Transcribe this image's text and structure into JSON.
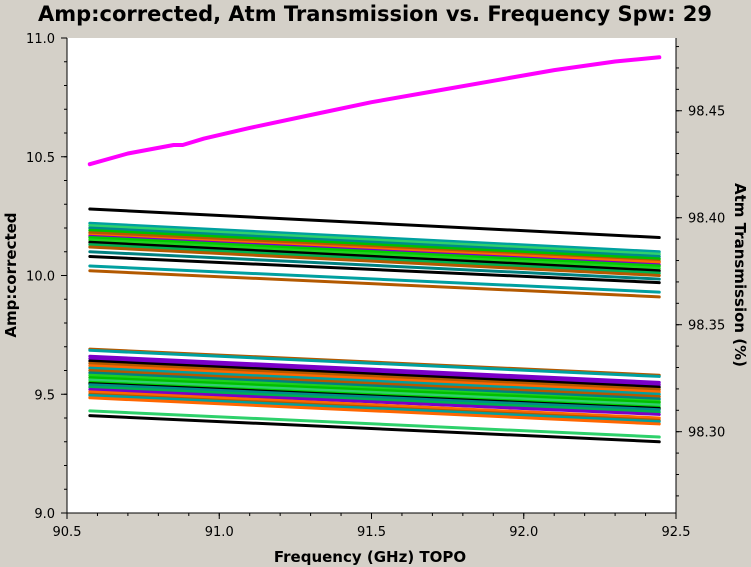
{
  "chart_data": {
    "type": "line",
    "title": "Amp:corrected, Atm Transmission vs. Frequency Spw: 29",
    "xlabel": "Frequency (GHz) TOPO",
    "ylabel": "Amp:corrected",
    "y2label": "Atm Transmission (%)",
    "xlim": [
      90.5,
      92.5
    ],
    "ylim": [
      9.0,
      11.0
    ],
    "y2lim": [
      98.262,
      98.484
    ],
    "x_ticks": [
      "90.5",
      "91.0",
      "91.5",
      "92.0",
      "92.5"
    ],
    "y_ticks": [
      "9.0",
      "9.5",
      "10.0",
      "10.5",
      "11.0"
    ],
    "y2_ticks": [
      "98.30",
      "98.35",
      "98.40",
      "98.45"
    ],
    "grid": false,
    "x_range": [
      90.575,
      92.445
    ],
    "atm_transmission": {
      "name": "Atm Transmission",
      "color": "#ff00ff",
      "x": [
        90.575,
        90.7,
        90.85,
        90.88,
        90.95,
        91.1,
        91.3,
        91.5,
        91.7,
        91.9,
        92.1,
        92.3,
        92.445
      ],
      "y": [
        98.425,
        98.43,
        98.434,
        98.434,
        98.437,
        98.442,
        98.448,
        98.454,
        98.459,
        98.464,
        98.469,
        98.473,
        98.475
      ]
    },
    "series": [
      {
        "color": "#000000",
        "y": [
          10.28,
          10.16
        ]
      },
      {
        "color": "#00a0a0",
        "y": [
          10.22,
          10.1
        ]
      },
      {
        "color": "#2ed16b",
        "y": [
          10.21,
          10.09
        ]
      },
      {
        "color": "#008b8b",
        "y": [
          10.2,
          10.08
        ]
      },
      {
        "color": "#00c000",
        "y": [
          10.19,
          10.07
        ]
      },
      {
        "color": "#b35900",
        "y": [
          10.18,
          10.06
        ]
      },
      {
        "color": "#ff6600",
        "y": [
          10.17,
          10.055
        ]
      },
      {
        "color": "#7a00c8",
        "y": [
          10.165,
          10.045
        ]
      },
      {
        "color": "#00cc00",
        "y": [
          10.16,
          10.04
        ]
      },
      {
        "color": "#20d020",
        "y": [
          10.15,
          10.03
        ]
      },
      {
        "color": "#000000",
        "y": [
          10.14,
          10.02
        ]
      },
      {
        "color": "#00b050",
        "y": [
          10.13,
          10.01
        ]
      },
      {
        "color": "#b35900",
        "y": [
          10.12,
          10.0
        ]
      },
      {
        "color": "#008080",
        "y": [
          10.1,
          9.985
        ]
      },
      {
        "color": "#000000",
        "y": [
          10.08,
          9.97
        ]
      },
      {
        "color": "#00a0a0",
        "y": [
          10.04,
          9.93
        ]
      },
      {
        "color": "#b35900",
        "y": [
          10.02,
          9.91
        ]
      },
      {
        "color": "#b35900",
        "y": [
          9.69,
          9.58
        ]
      },
      {
        "color": "#00a0a0",
        "y": [
          9.685,
          9.575
        ]
      },
      {
        "color": "#7a00c8",
        "y": [
          9.66,
          9.55
        ]
      },
      {
        "color": "#7a00c8",
        "y": [
          9.65,
          9.54
        ]
      },
      {
        "color": "#000000",
        "y": [
          9.64,
          9.53
        ]
      },
      {
        "color": "#b35900",
        "y": [
          9.63,
          9.52
        ]
      },
      {
        "color": "#ff6600",
        "y": [
          9.62,
          9.51
        ]
      },
      {
        "color": "#00a0a0",
        "y": [
          9.61,
          9.5
        ]
      },
      {
        "color": "#b35900",
        "y": [
          9.6,
          9.49
        ]
      },
      {
        "color": "#008080",
        "y": [
          9.59,
          9.48
        ]
      },
      {
        "color": "#20d020",
        "y": [
          9.58,
          9.47
        ]
      },
      {
        "color": "#00c000",
        "y": [
          9.57,
          9.465
        ]
      },
      {
        "color": "#2ed16b",
        "y": [
          9.56,
          9.455
        ]
      },
      {
        "color": "#00cc00",
        "y": [
          9.55,
          9.445
        ]
      },
      {
        "color": "#000000",
        "y": [
          9.545,
          9.44
        ]
      },
      {
        "color": "#008b8b",
        "y": [
          9.54,
          9.435
        ]
      },
      {
        "color": "#00b050",
        "y": [
          9.53,
          9.425
        ]
      },
      {
        "color": "#7a00c8",
        "y": [
          9.52,
          9.415
        ]
      },
      {
        "color": "#ff6600",
        "y": [
          9.51,
          9.4
        ]
      },
      {
        "color": "#b35900",
        "y": [
          9.5,
          9.39
        ]
      },
      {
        "color": "#00a0a0",
        "y": [
          9.495,
          9.385
        ]
      },
      {
        "color": "#ff6600",
        "y": [
          9.485,
          9.375
        ]
      },
      {
        "color": "#2ed16b",
        "y": [
          9.43,
          9.32
        ]
      },
      {
        "color": "#000000",
        "y": [
          9.41,
          9.3
        ]
      }
    ]
  }
}
